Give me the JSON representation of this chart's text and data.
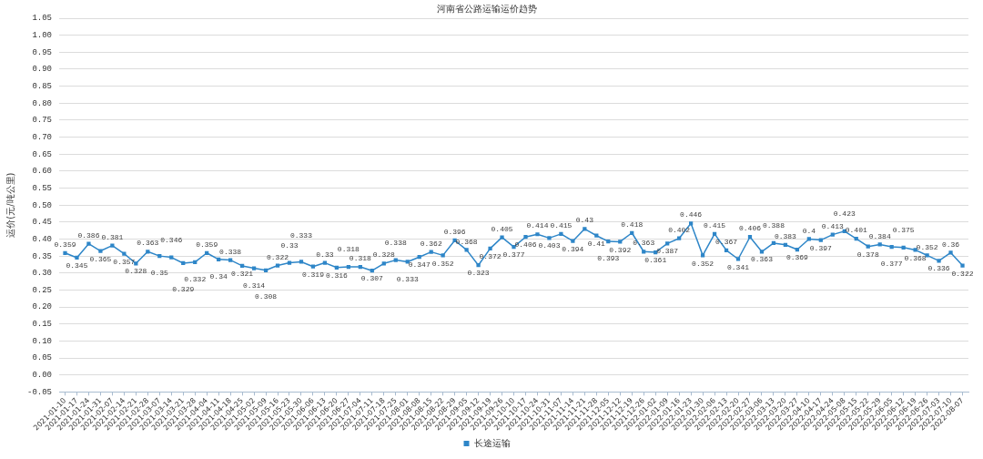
{
  "chart_data": {
    "type": "line",
    "title": "河南省公路运输运价趋势",
    "ylabel": "运价(元/吨公里)",
    "categories": [
      "2021-01-10",
      "2021-01-17",
      "2021-01-24",
      "2021-01-31",
      "2021-02-07",
      "2021-02-14",
      "2021-02-21",
      "2021-02-28",
      "2021-03-07",
      "2021-03-14",
      "2021-03-21",
      "2021-03-28",
      "2021-04-04",
      "2021-04-11",
      "2021-04-18",
      "2021-04-25",
      "2021-05-02",
      "2021-05-09",
      "2021-05-16",
      "2021-05-23",
      "2021-05-30",
      "2021-06-06",
      "2021-06-13",
      "2021-06-20",
      "2021-06-27",
      "2021-07-04",
      "2021-07-11",
      "2021-07-18",
      "2021-07-25",
      "2021-08-01",
      "2021-08-08",
      "2021-08-15",
      "2021-08-22",
      "2021-08-29",
      "2021-09-05",
      "2021-09-12",
      "2021-09-19",
      "2021-09-26",
      "2021-10-10",
      "2021-10-17",
      "2021-10-24",
      "2021-10-31",
      "2021-11-07",
      "2021-11-14",
      "2021-11-21",
      "2021-11-28",
      "2021-12-05",
      "2021-12-12",
      "2021-12-19",
      "2021-12-26",
      "2022-01-02",
      "2022-01-09",
      "2022-01-16",
      "2022-01-23",
      "2022-01-30",
      "2022-02-06",
      "2022-02-13",
      "2022-02-20",
      "2022-02-27",
      "2022-03-06",
      "2022-03-13",
      "2022-03-20",
      "2022-03-27",
      "2022-04-10",
      "2022-04-17",
      "2022-04-24",
      "2022-05-08",
      "2022-05-15",
      "2022-05-22",
      "2022-05-29",
      "2022-06-05",
      "2022-06-12",
      "2022-06-19",
      "2022-06-26",
      "2022-07-03",
      "2022-07-10",
      "2022-08-07"
    ],
    "series": [
      {
        "name": "长途运输",
        "color": "#2e86c8",
        "values": [
          0.359,
          0.345,
          0.386,
          0.365,
          0.381,
          0.357,
          0.328,
          0.363,
          0.35,
          0.346,
          0.329,
          0.332,
          0.359,
          0.34,
          0.338,
          0.321,
          0.314,
          0.308,
          0.322,
          0.33,
          0.333,
          0.319,
          0.33,
          0.316,
          0.318,
          0.318,
          0.307,
          0.328,
          0.338,
          0.333,
          0.347,
          0.362,
          0.352,
          0.396,
          0.368,
          0.323,
          0.372,
          0.405,
          0.377,
          0.406,
          0.414,
          0.403,
          0.415,
          0.394,
          0.43,
          0.41,
          0.393,
          0.392,
          0.418,
          0.363,
          0.361,
          0.387,
          0.402,
          0.446,
          0.352,
          0.415,
          0.367,
          0.341,
          0.406,
          0.363,
          0.388,
          0.383,
          0.369,
          0.4,
          0.397,
          0.413,
          0.423,
          0.401,
          0.378,
          0.384,
          0.377,
          0.375,
          0.368,
          0.352,
          0.336,
          0.36,
          0.322
        ]
      }
    ],
    "ylim": [
      -0.05,
      1.05
    ],
    "yticks": [
      {
        "value": -0.05,
        "label": "-0.05"
      },
      {
        "value": 0,
        "label": "0.00"
      },
      {
        "value": 0.05,
        "label": "0.05"
      },
      {
        "value": 0.1,
        "label": "0.10"
      },
      {
        "value": 0.15,
        "label": "0.15"
      },
      {
        "value": 0.2,
        "label": "0.20"
      },
      {
        "value": 0.25,
        "label": "0.25"
      },
      {
        "value": 0.3,
        "label": "0.30"
      },
      {
        "value": 0.35,
        "label": "0.35"
      },
      {
        "value": 0.4,
        "label": "0.40"
      },
      {
        "value": 0.45,
        "label": "0.45"
      },
      {
        "value": 0.5,
        "label": "0.50"
      },
      {
        "value": 0.55,
        "label": "0.55"
      },
      {
        "value": 0.6,
        "label": "0.60"
      },
      {
        "value": 0.65,
        "label": "0.65"
      },
      {
        "value": 0.7,
        "label": "0.70"
      },
      {
        "value": 0.75,
        "label": "0.75"
      },
      {
        "value": 0.8,
        "label": "0.80"
      },
      {
        "value": 0.85,
        "label": "0.85"
      },
      {
        "value": 0.9,
        "label": "0.90"
      },
      {
        "value": 0.95,
        "label": "0.95"
      },
      {
        "value": 1,
        "label": "1.00"
      },
      {
        "value": 1.05,
        "label": "1.05"
      }
    ],
    "grid": "y",
    "legend": "bottom",
    "marker": "square",
    "data_labels": true
  }
}
